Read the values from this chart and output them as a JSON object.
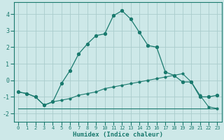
{
  "xlabel": "Humidex (Indice chaleur)",
  "x": [
    0,
    1,
    2,
    3,
    4,
    5,
    6,
    7,
    8,
    9,
    10,
    11,
    12,
    13,
    14,
    15,
    16,
    17,
    18,
    19,
    20,
    21,
    22,
    23
  ],
  "line1": [
    -0.7,
    -0.8,
    -1.0,
    -1.5,
    -1.3,
    -0.2,
    0.6,
    1.6,
    2.2,
    2.7,
    2.8,
    3.9,
    4.2,
    3.7,
    2.9,
    2.1,
    2.0,
    0.5,
    0.3,
    -0.1,
    -0.1,
    -1.0,
    -1.0,
    -0.9
  ],
  "line2": [
    -0.7,
    -0.8,
    -1.0,
    -1.5,
    -1.3,
    -1.2,
    -1.1,
    -0.9,
    -0.8,
    -0.7,
    -0.5,
    -0.4,
    -0.3,
    -0.2,
    -0.1,
    0.0,
    0.1,
    0.2,
    0.3,
    0.4,
    -0.1,
    -0.9,
    -1.6,
    -1.7
  ],
  "line3": [
    -1.7,
    -1.7,
    -1.7,
    -1.7,
    -1.7,
    -1.7,
    -1.7,
    -1.7,
    -1.7,
    -1.7,
    -1.7,
    -1.7,
    -1.7,
    -1.7,
    -1.7,
    -1.7,
    -1.7,
    -1.7,
    -1.7,
    -1.7,
    -1.7,
    -1.7,
    -1.7,
    -1.7
  ],
  "line_color": "#1a7a6e",
  "bg_color": "#cde8e8",
  "grid_color": "#aacccc",
  "ylim": [
    -2.5,
    4.7
  ],
  "xlim": [
    -0.5,
    23.5
  ],
  "yticks": [
    -2,
    -1,
    0,
    1,
    2,
    3,
    4
  ]
}
